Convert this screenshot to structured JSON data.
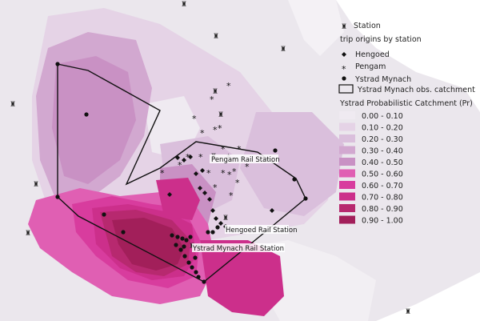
{
  "colors": {
    "background": "#ffffff",
    "base_land": "#ebe7ed",
    "class_colors": [
      "#efeaf1",
      "#e5d3e6",
      "#dabfdc",
      "#d2a8d0",
      "#c991c4",
      "#e05fb3",
      "#d83c9e",
      "#cc2f8b",
      "#b7296f",
      "#a21f5a"
    ],
    "catchment_line": "#111111"
  },
  "stations": {
    "pengam": "Pengam Rail Station",
    "hengoed": "Hengoed Rail Station",
    "ystrad": "Ystrad Mynach Rail Station"
  },
  "legend": {
    "station": "Station",
    "trip_title": "trip origins by station",
    "hengoed": "Hengoed",
    "pengam": "Pengam",
    "ystrad": "Ystrad Mynach",
    "catchment": "Ystrad Mynach obs. catchment",
    "scale_title": "Ystrad Probabilistic Catchment (Pr)",
    "classes": [
      "0.00 - 0.10",
      "0.10 - 0.20",
      "0.20 - 0.30",
      "0.30 - 0.40",
      "0.40 - 0.50",
      "0.50 - 0.60",
      "0.60 - 0.70",
      "0.70 - 0.80",
      "0.80 - 0.90",
      "0.90 - 1.00"
    ]
  }
}
